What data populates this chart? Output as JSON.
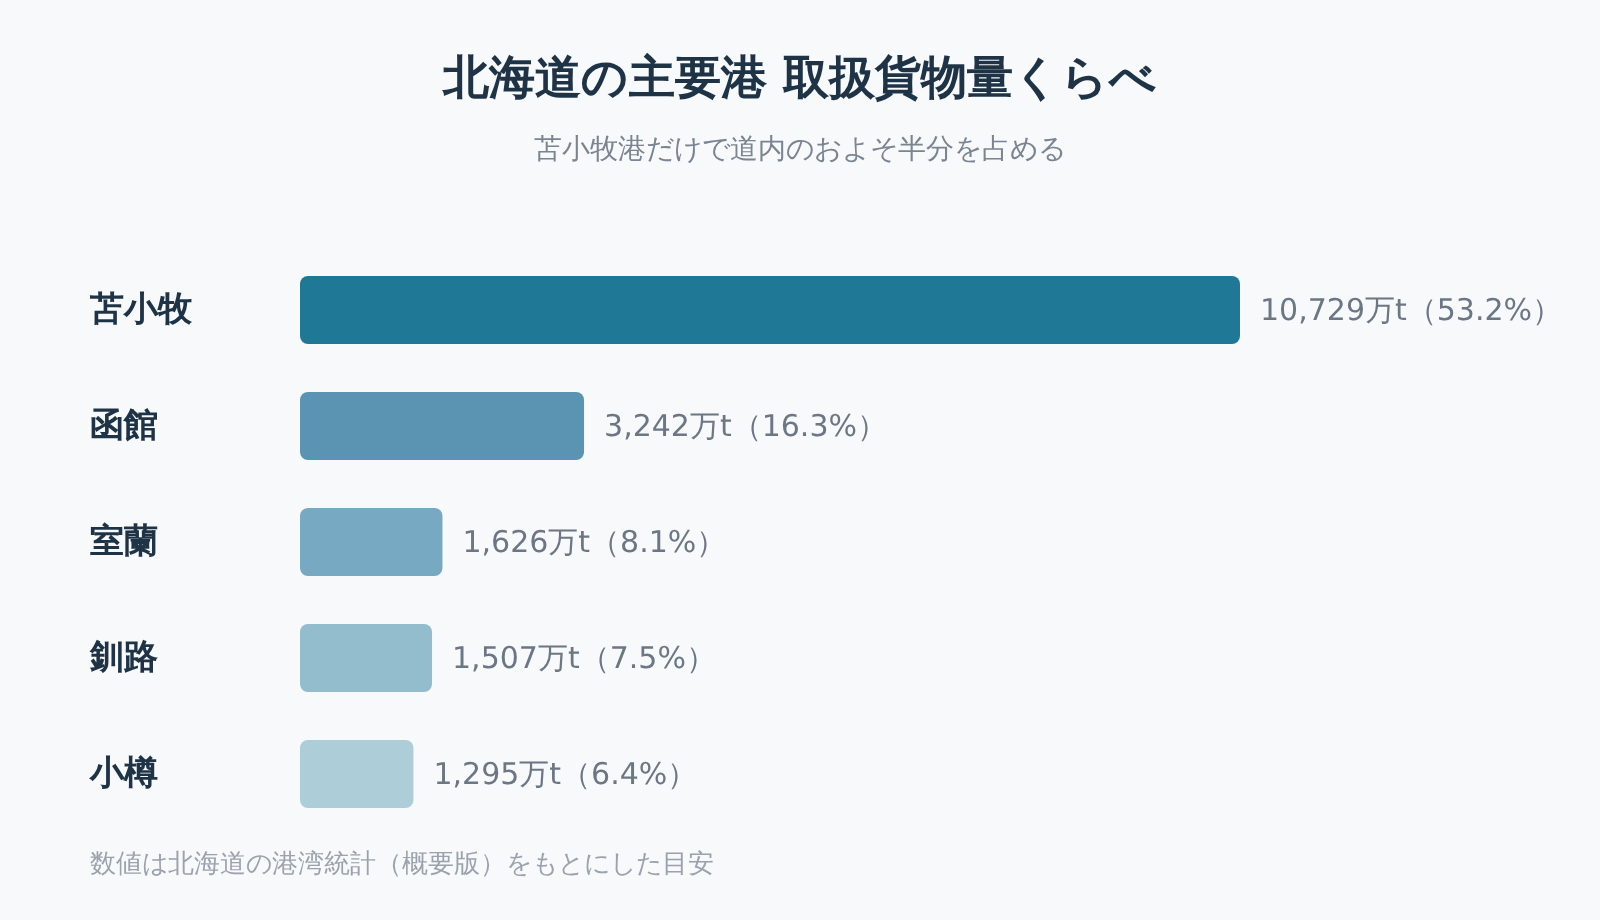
{
  "chart_data": {
    "type": "bar",
    "orientation": "horizontal",
    "title": "北海道の主要港 取扱貨物量くらべ",
    "subtitle": "苫小牧港だけで道内のおよそ半分を占める",
    "categories": [
      "苫小牧",
      "函館",
      "室蘭",
      "釧路",
      "小樽"
    ],
    "values": [
      10729,
      3242,
      1626,
      1507,
      1295
    ],
    "colors": [
      "#1f7896",
      "#5b93b2",
      "#78a9c2",
      "#93bccd",
      "#adcdd8"
    ],
    "value_labels": [
      "10,729万t（53.2%）",
      "3,242万t（16.3%）",
      "1,626万t（8.1%）",
      "1,507万t（7.5%）",
      "1,295万t（6.4%）"
    ],
    "annotations": [
      "数値は北海道の港湾統計（概要版）をもとにした目安"
    ]
  }
}
